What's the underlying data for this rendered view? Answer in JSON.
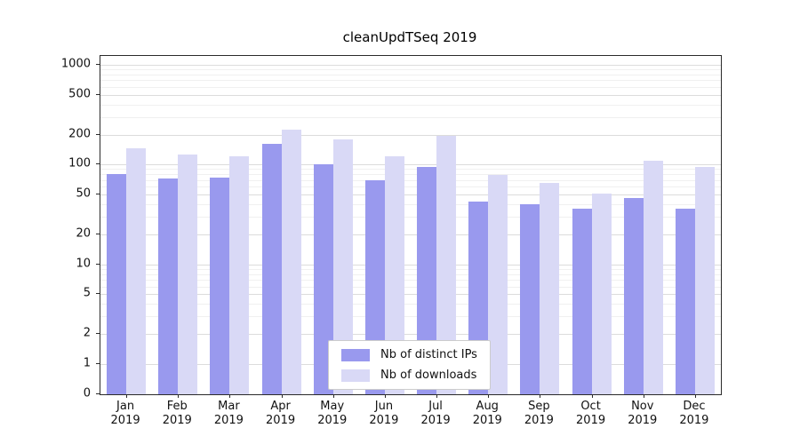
{
  "title": "cleanUpdTSeq 2019",
  "colors": {
    "distinct_ips_bar": "#9999ee",
    "downloads_bar": "#d9d9f6",
    "grid_major": "#dcdcdc",
    "grid_minor": "#f0f0f0",
    "spine": "#2a2a2a"
  },
  "chart_data": {
    "type": "bar",
    "title": "cleanUpdTSeq 2019",
    "y_scale": "symlog",
    "ylim": [
      0,
      1000
    ],
    "y_ticks": [
      1000,
      500,
      200,
      100,
      50,
      20,
      10,
      5,
      2,
      1,
      0
    ],
    "grid": true,
    "categories": [
      "Jan 2019",
      "Feb 2019",
      "Mar 2019",
      "Apr 2019",
      "May 2019",
      "Jun 2019",
      "Jul 2019",
      "Aug 2019",
      "Sep 2019",
      "Oct 2019",
      "Nov 2019",
      "Dec 2019"
    ],
    "month_labels": [
      "Jan",
      "Feb",
      "Mar",
      "Apr",
      "May",
      "Jun",
      "Jul",
      "Aug",
      "Sep",
      "Oct",
      "Nov",
      "Dec"
    ],
    "year_label": "2019",
    "series": [
      {
        "name": "Nb of distinct IPs",
        "color": "#9999ee",
        "values": [
          80,
          72,
          74,
          160,
          100,
          70,
          94,
          43,
          40,
          36,
          46,
          36
        ]
      },
      {
        "name": "Nb of downloads",
        "color": "#d9d9f6",
        "values": [
          145,
          125,
          120,
          225,
          180,
          122,
          196,
          78,
          66,
          51,
          110,
          95
        ]
      }
    ],
    "legend": {
      "position": "lower center",
      "entries": [
        "Nb of distinct IPs",
        "Nb of downloads"
      ]
    }
  }
}
